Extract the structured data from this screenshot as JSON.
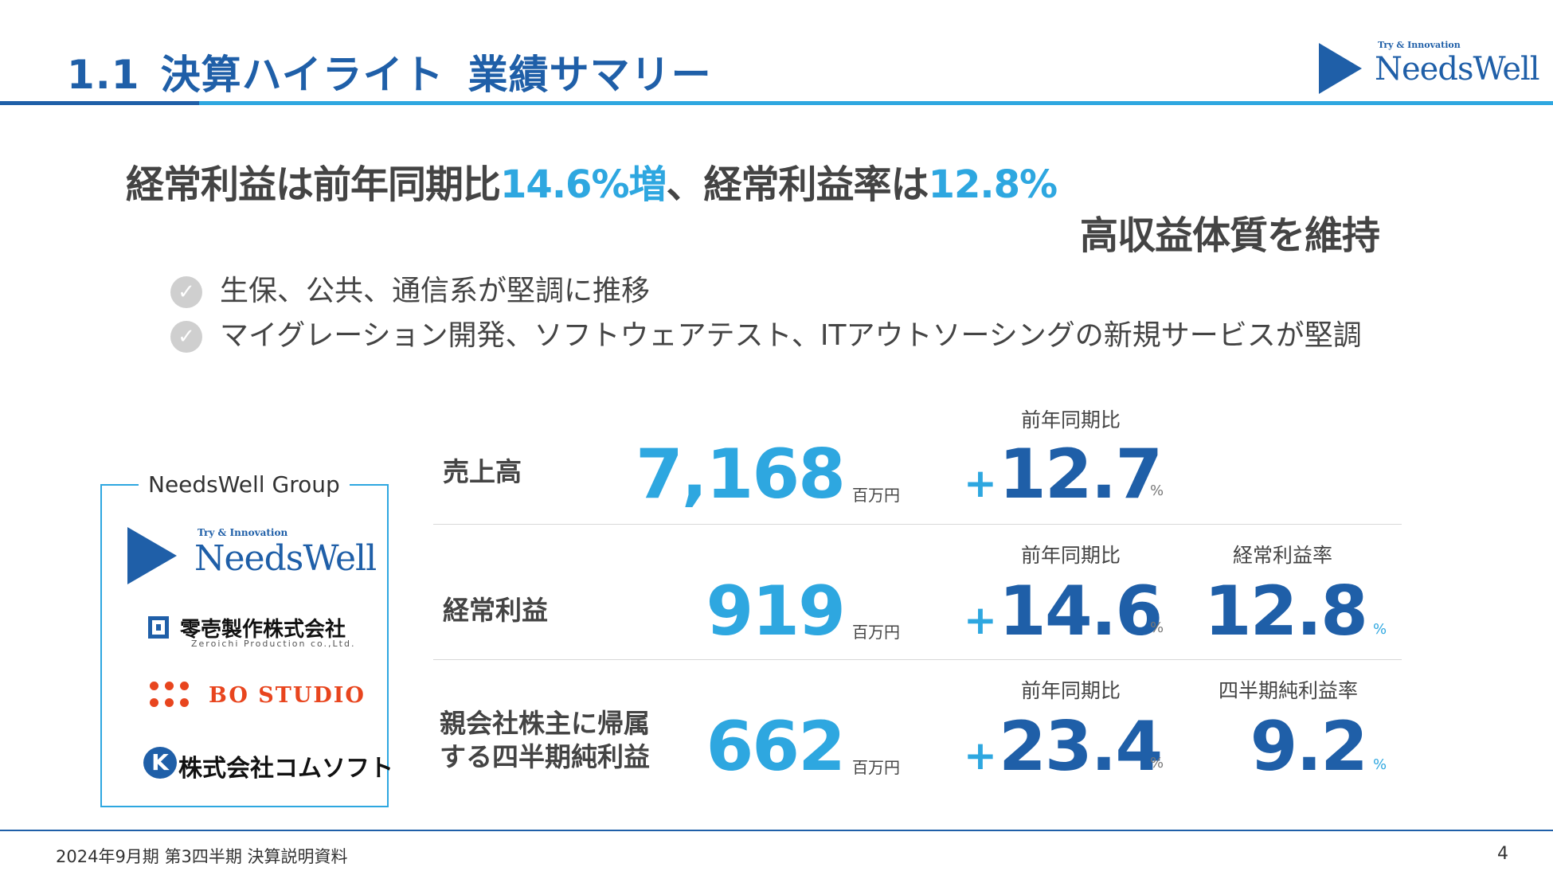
{
  "header": {
    "section_number": "1.1",
    "title_part1": "決算ハイライト",
    "title_part2": "業績サマリー",
    "logo": {
      "tagline": "Try & Innovation",
      "brand": "NeedsWell"
    }
  },
  "headline": {
    "line1_a": "経常利益は前年同期比",
    "line1_hl1": "14.6%増",
    "line1_b": "、経常利益率は",
    "line1_hl2": "12.8%",
    "line2": "高収益体質を維持"
  },
  "bullets": [
    "生保、公共、通信系が堅調に推移",
    "マイグレーション開発、ソフトウェアテスト、ITアウトソーシングの新規サービスが堅調"
  ],
  "group": {
    "label": "NeedsWell Group",
    "needswell": {
      "tagline": "Try & Innovation",
      "brand": "NeedsWell"
    },
    "zeroichi": {
      "name": "零壱製作株式会社",
      "sub": "Zeroichi Production co.,Ltd."
    },
    "bo_studio": {
      "name": "BO STUDIO"
    },
    "comsoft": {
      "mark": "K",
      "name": "株式会社コムソフト"
    }
  },
  "metrics": [
    {
      "label": "売上高",
      "value": "7,168",
      "unit": "百万円",
      "yoy_caption": "前年同期比",
      "yoy_sign": "+",
      "yoy": "12.7",
      "yoy_unit": "%"
    },
    {
      "label": "経常利益",
      "value": "919",
      "unit": "百万円",
      "yoy_caption": "前年同期比",
      "yoy_sign": "+",
      "yoy": "14.6",
      "yoy_unit": "%",
      "ratio_caption": "経常利益率",
      "ratio": "12.8",
      "ratio_unit": "%"
    },
    {
      "label_line1": "親会社株主に帰属",
      "label_line2": "する四半期純利益",
      "value": "662",
      "unit": "百万円",
      "yoy_caption": "前年同期比",
      "yoy_sign": "+",
      "yoy": "23.4",
      "yoy_unit": "%",
      "ratio_caption": "四半期純利益率",
      "ratio": "9.2",
      "ratio_unit": "%"
    }
  ],
  "footer": {
    "text": "2024年9月期 第3四半期 決算説明資料",
    "page": "4"
  },
  "colors": {
    "primary": "#1f5fa8",
    "accent": "#2ea7e0",
    "text": "#444444",
    "bo_studio": "#e8451e"
  }
}
